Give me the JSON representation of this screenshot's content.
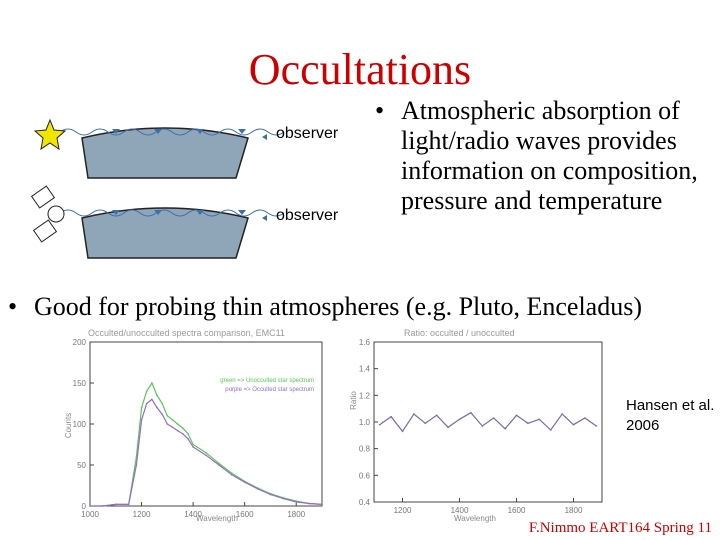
{
  "slide": {
    "title": "Occultations",
    "observer_labels": [
      "observer",
      "observer"
    ],
    "bullets": [
      "Atmospheric absorption of light/radio waves provides information on composition, pressure and temperature",
      "Good for probing thin atmospheres (e.g. Pluto, Enceladus)"
    ],
    "citation": "Hansen et al. 2006",
    "footer": "F.Nimmo EART164 Spring 11",
    "colors": {
      "title": "#cc0000",
      "wave": "#3a6fb0",
      "body": "#8fa6b8",
      "star": "#f2e600"
    },
    "icons": [
      "star-icon",
      "satellite-icon",
      "eye-icon"
    ]
  },
  "chart_data": [
    {
      "type": "line",
      "title": "Occulted/unocculted spectra comparison, EMC11",
      "xlabel": "Wavelength",
      "ylabel": "Counts",
      "x_ticks": [
        "1000",
        "1200",
        "1400",
        "1600",
        "1800"
      ],
      "y_ticks": [
        "0",
        "50",
        "100",
        "150",
        "200"
      ],
      "xlim": [
        1000,
        1900
      ],
      "ylim": [
        0,
        200
      ],
      "legend": [
        "green => Unocculted star spectrum",
        "purple => Occulted star spectrum"
      ],
      "legend_position": "top-right",
      "series": [
        {
          "name": "green => Unocculted star spectrum",
          "color": "#55c855",
          "x": [
            1000,
            1050,
            1100,
            1150,
            1180,
            1200,
            1220,
            1240,
            1260,
            1280,
            1300,
            1320,
            1340,
            1360,
            1380,
            1400,
            1450,
            1500,
            1550,
            1600,
            1650,
            1700,
            1750,
            1800,
            1850,
            1900
          ],
          "y": [
            0,
            0,
            2,
            2,
            60,
            120,
            140,
            150,
            135,
            125,
            110,
            105,
            100,
            95,
            88,
            75,
            65,
            52,
            40,
            30,
            22,
            15,
            10,
            6,
            3,
            2
          ]
        },
        {
          "name": "purple => Occulted star spectrum",
          "color": "#9a6ac8",
          "x": [
            1000,
            1050,
            1100,
            1150,
            1180,
            1200,
            1220,
            1240,
            1260,
            1280,
            1300,
            1320,
            1340,
            1360,
            1380,
            1400,
            1450,
            1500,
            1550,
            1600,
            1650,
            1700,
            1750,
            1800,
            1850,
            1900
          ],
          "y": [
            0,
            0,
            2,
            2,
            50,
            105,
            125,
            130,
            120,
            112,
            100,
            96,
            92,
            88,
            82,
            72,
            62,
            50,
            38,
            29,
            21,
            14,
            9,
            5,
            3,
            2
          ]
        }
      ]
    },
    {
      "type": "line",
      "title": "Ratio: occulted / unocculted",
      "xlabel": "Wavelength",
      "ylabel": "Ratio",
      "x_ticks": [
        "1200",
        "1400",
        "1600",
        "1800"
      ],
      "y_ticks": [
        "0.4",
        "0.6",
        "0.8",
        "1.0",
        "1.2",
        "1.4",
        "1.6"
      ],
      "xlim": [
        1100,
        1900
      ],
      "ylim": [
        0.4,
        1.6
      ],
      "series": [
        {
          "color": "#7a6aa8",
          "x": [
            1120,
            1160,
            1200,
            1240,
            1280,
            1320,
            1360,
            1400,
            1440,
            1480,
            1520,
            1560,
            1600,
            1640,
            1680,
            1720,
            1760,
            1800,
            1840,
            1880
          ],
          "y": [
            0.98,
            1.04,
            0.93,
            1.06,
            0.99,
            1.05,
            0.96,
            1.02,
            1.07,
            0.97,
            1.03,
            0.95,
            1.05,
            0.99,
            1.02,
            0.94,
            1.06,
            0.98,
            1.03,
            0.97
          ]
        }
      ]
    }
  ]
}
